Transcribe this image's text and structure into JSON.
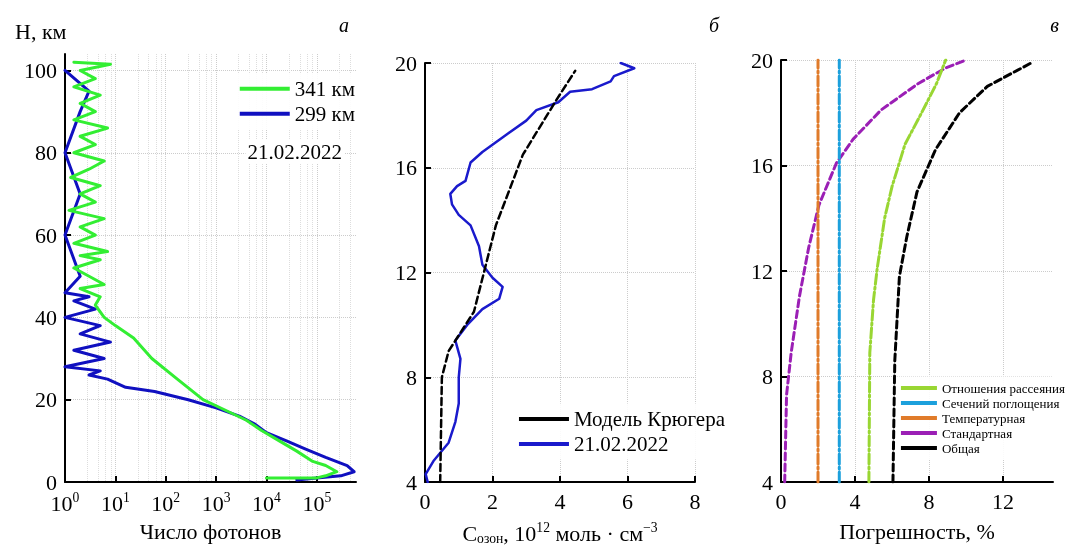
{
  "chart_data": [
    {
      "type": "line",
      "title": "а",
      "xlabel": "Число фотонов",
      "ylabel": "H, км",
      "log": "x",
      "xlim": [
        1,
        600000
      ],
      "xticks": [
        {
          "value": 1,
          "label": "10$^{0}$"
        },
        {
          "value": 10,
          "label": "10$^{1}$"
        },
        {
          "value": 100,
          "label": "10$^{2}$"
        },
        {
          "value": 1000,
          "label": "10$^{3}$"
        },
        {
          "value": 10000,
          "label": "10$^{4}$"
        },
        {
          "value": 100000,
          "label": "10$^{5}$"
        }
      ],
      "ylim": [
        0,
        104
      ],
      "yticks": [
        0,
        20,
        40,
        60,
        80,
        100
      ],
      "grid": true,
      "legend": "top right",
      "annotations": [
        "21.02.2022"
      ],
      "series": [
        {
          "name": "341 км",
          "color": "#33ee33",
          "line_style": "solid",
          "x": [
            10000,
            100000,
            150000,
            250000,
            150000,
            83000,
            40000,
            18000,
            8000,
            4000,
            1500,
            550,
            170,
            53,
            23,
            10,
            6,
            4,
            5,
            2,
            6,
            3,
            1.5,
            5,
            2,
            7,
            1.5,
            4,
            2,
            6,
            1.2,
            4,
            2,
            5,
            1.3,
            3,
            6,
            1.5,
            4,
            2,
            7,
            1.5,
            4,
            2,
            5,
            1.5,
            4,
            2,
            8,
            1.5
          ],
          "values": [
            1,
            1,
            1.5,
            2.5,
            4,
            5,
            7.5,
            10,
            12.5,
            15,
            17.5,
            20,
            25,
            30,
            35,
            38,
            40,
            43,
            45,
            47,
            48,
            50,
            52,
            54,
            55,
            56,
            58,
            60,
            62,
            64,
            66,
            68,
            70,
            72,
            74,
            76,
            78,
            80,
            82,
            84,
            86,
            88,
            90,
            92,
            94,
            96,
            98,
            100,
            101.5,
            102
          ]
        },
        {
          "name": "299 км",
          "color": "#1010c0",
          "line_style": "solid",
          "x": [
            40000,
            100000,
            300000,
            550000,
            400000,
            150000,
            60000,
            25000,
            10000,
            6000,
            2900,
            1000,
            280,
            60,
            16,
            7,
            3,
            5,
            1,
            6,
            1.5,
            8,
            2,
            5,
            1,
            4,
            1.5,
            3,
            1,
            2,
            1,
            2,
            1,
            2,
            3,
            1
          ],
          "values": [
            0.5,
            1,
            1.5,
            2.5,
            4,
            6,
            8,
            10,
            12,
            14,
            16,
            18,
            20,
            22,
            23,
            25,
            26,
            27,
            28,
            30,
            32,
            34,
            36,
            38,
            40,
            42,
            44,
            45,
            46,
            50,
            60,
            70,
            80,
            90,
            95,
            100
          ]
        }
      ]
    },
    {
      "type": "line",
      "title": "б",
      "xlabel": "C$_{озон}$, 10$^{12}$ моль · см$^{−3}$",
      "xlim": [
        0,
        8
      ],
      "xticks": [
        0,
        2,
        4,
        6,
        8
      ],
      "ylim": [
        4,
        20
      ],
      "yticks": [
        4,
        8,
        12,
        16,
        20
      ],
      "grid": true,
      "legend": "bottom right",
      "series": [
        {
          "name": "Модель Крюгера",
          "color": "#000000",
          "line_style": "dashed",
          "x": [
            0.45,
            0.5,
            0.7,
            1.45,
            2.1,
            2.9,
            3.9,
            4.45
          ],
          "values": [
            4,
            8,
            9,
            10.5,
            13.8,
            16.5,
            18.6,
            19.7
          ]
        },
        {
          "name": "21.02.2022",
          "color": "#1a1acc",
          "line_style": "solid",
          "x": [
            0.08,
            0.02,
            0.25,
            0.7,
            0.9,
            1.0,
            1.0,
            1.05,
            0.9,
            1.25,
            1.7,
            2.2,
            2.3,
            2.0,
            1.7,
            1.6,
            1.35,
            1.0,
            0.8,
            0.75,
            0.95,
            1.2,
            1.35,
            1.7,
            2.45,
            3.0,
            3.3,
            3.95,
            4.3,
            4.95,
            5.5,
            5.6,
            6.2,
            5.8
          ],
          "values": [
            4.0,
            4.3,
            4.8,
            5.5,
            6.3,
            7.0,
            8.0,
            8.7,
            9.4,
            10.0,
            10.6,
            11.0,
            11.45,
            11.8,
            12.3,
            13.0,
            13.8,
            14.2,
            14.6,
            15.0,
            15.3,
            15.5,
            16.2,
            16.6,
            17.3,
            17.8,
            18.2,
            18.5,
            18.9,
            19.0,
            19.3,
            19.5,
            19.8,
            20.0
          ]
        }
      ]
    },
    {
      "type": "line",
      "title": "в",
      "xlabel": "Погрешность, %",
      "xlim": [
        0,
        14.7
      ],
      "xticks": [
        0,
        4,
        8,
        12
      ],
      "ylim": [
        4,
        20
      ],
      "yticks": [
        4,
        8,
        12,
        16,
        20
      ],
      "grid": true,
      "legend": "bottom right",
      "series": [
        {
          "name": "Отношения рассеяния",
          "color": "#99d633",
          "line_style": "dashdot",
          "x": [
            4.75,
            4.8,
            5.0,
            5.2,
            5.6,
            6.0,
            6.7,
            7.6,
            8.4,
            8.9
          ],
          "values": [
            4,
            8.9,
            10.9,
            12.1,
            14.0,
            15.2,
            16.8,
            18.0,
            19.1,
            20
          ]
        },
        {
          "name": "Сечений поглощения",
          "color": "#1ca0dc",
          "line_style": "dashdot",
          "x": [
            3.15,
            3.15
          ],
          "values": [
            4,
            20
          ]
        },
        {
          "name": "Температурная",
          "color": "#e07b2a",
          "line_style": "dashdot",
          "x": [
            2.0,
            2.0
          ],
          "values": [
            4,
            20
          ]
        },
        {
          "name": "Стандартная",
          "color": "#9b1fb5",
          "line_style": "dashed",
          "x": [
            0.2,
            0.3,
            0.55,
            1.0,
            1.5,
            2.05,
            3.0,
            3.9,
            5.4,
            7.4,
            8.9,
            10.0
          ],
          "values": [
            4,
            7.3,
            8.9,
            11.05,
            12.9,
            14.5,
            16.1,
            17.0,
            18.1,
            19.1,
            19.7,
            20
          ]
        },
        {
          "name": "Общая",
          "color": "#000000",
          "line_style": "dashed",
          "x": [
            6.05,
            6.15,
            6.4,
            6.8,
            7.35,
            8.35,
            9.65,
            11.15,
            13.55
          ],
          "values": [
            4,
            8.6,
            11.8,
            13.3,
            15.0,
            16.6,
            18.0,
            19.0,
            19.9
          ]
        }
      ]
    }
  ]
}
